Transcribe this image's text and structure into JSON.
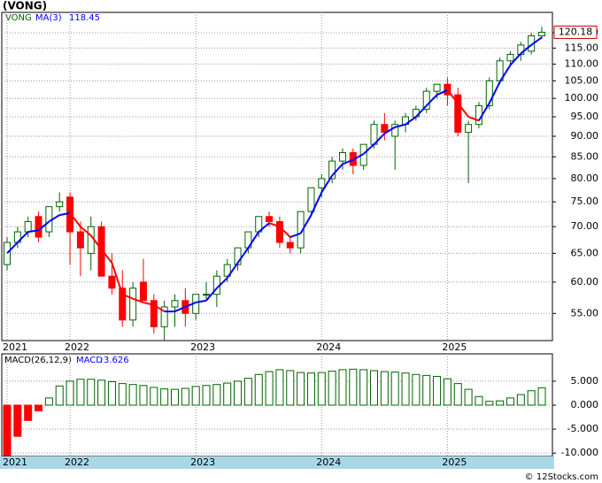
{
  "chart_data": [
    {
      "type": "candlestick",
      "title": "(VONG)",
      "log_scale": true,
      "grid": true,
      "categories": [
        "2021",
        null,
        null,
        null,
        null,
        null,
        "2022",
        null,
        null,
        null,
        null,
        null,
        null,
        null,
        null,
        null,
        null,
        null,
        "2023",
        null,
        null,
        null,
        null,
        null,
        null,
        null,
        null,
        null,
        null,
        null,
        "2024",
        null,
        null,
        null,
        null,
        null,
        null,
        null,
        null,
        null,
        null,
        null,
        "2025",
        null,
        null,
        null,
        null,
        null,
        null,
        null,
        null,
        null
      ],
      "series": [
        {
          "name": "VONG",
          "up_color": "#006400",
          "down_color": "#ff0000",
          "open": [
            63,
            67,
            69,
            72,
            69,
            74,
            76,
            69,
            65,
            70,
            61,
            59,
            54,
            60,
            57,
            53,
            56,
            57,
            55,
            58,
            58,
            61,
            63,
            66,
            69,
            72,
            71,
            67,
            66,
            73,
            78,
            80,
            84,
            86,
            83,
            88,
            93,
            90,
            93,
            95,
            97,
            102,
            104,
            101,
            91,
            93,
            98,
            105,
            111,
            113,
            114,
            119
          ],
          "high": [
            68,
            70,
            72,
            73,
            74,
            77,
            77,
            71,
            72,
            71,
            65,
            62,
            60,
            64,
            58,
            57,
            58,
            59,
            58,
            60,
            62,
            64,
            66,
            69,
            72,
            73,
            72,
            68,
            73,
            78,
            81,
            85,
            87,
            87,
            88,
            94,
            96,
            94,
            96,
            98,
            103,
            104,
            106,
            103,
            94,
            99,
            106,
            112,
            114,
            117,
            120,
            122
          ],
          "low": [
            62,
            66,
            68,
            67,
            68,
            73,
            63,
            61,
            62,
            61,
            58,
            53,
            53,
            57,
            52,
            51,
            53,
            53,
            54,
            57,
            56,
            60,
            62,
            65,
            68,
            70,
            66,
            65,
            65,
            72,
            76,
            79,
            82,
            81,
            82,
            87,
            89,
            82,
            91,
            94,
            96,
            100,
            98,
            90,
            79,
            92,
            97,
            104,
            110,
            111,
            113,
            118
          ],
          "close": [
            67,
            69,
            71,
            68,
            74,
            75,
            69,
            66,
            70,
            61,
            59,
            54,
            59,
            57,
            53,
            56,
            57,
            55,
            58,
            58,
            61,
            63,
            66,
            69,
            72,
            71,
            67,
            66,
            73,
            78,
            80,
            84,
            86,
            83,
            88,
            93,
            91,
            93,
            95,
            97,
            102,
            104,
            101,
            91,
            93,
            98,
            105,
            111,
            113,
            116,
            119,
            120.18
          ]
        },
        {
          "name": "MA(3)",
          "color": "#0000ff",
          "down_color": "#ff0000",
          "values": [
            65,
            67,
            69,
            69.3,
            71,
            72.3,
            72.7,
            70,
            68.3,
            65.7,
            63.3,
            58,
            57.3,
            56.7,
            56.3,
            55.3,
            55.3,
            56,
            56.7,
            57,
            59,
            60.7,
            63.3,
            66,
            69,
            70.7,
            70,
            68,
            68.7,
            72.3,
            77,
            80.7,
            83.3,
            84.3,
            85.7,
            88,
            90.7,
            92.3,
            93,
            95,
            98,
            101,
            102.3,
            98.7,
            95,
            94,
            98.7,
            104.7,
            109.7,
            113.3,
            116,
            118.45
          ]
        }
      ],
      "ylim": [
        51,
        127
      ],
      "yticks": [
        {
          "value": 55,
          "label": "55.00"
        },
        {
          "value": 60,
          "label": "60.00"
        },
        {
          "value": 65,
          "label": "65.00"
        },
        {
          "value": 70,
          "label": "70.00"
        },
        {
          "value": 75,
          "label": "75.00"
        },
        {
          "value": 80,
          "label": "80.00"
        },
        {
          "value": 85,
          "label": "85.00"
        },
        {
          "value": 90,
          "label": "90.00"
        },
        {
          "value": 95,
          "label": "95.00"
        },
        {
          "value": 100,
          "label": "100.00"
        },
        {
          "value": 105,
          "label": "105.00"
        },
        {
          "value": 110,
          "label": "110.00"
        },
        {
          "value": 115,
          "label": "115.00"
        },
        {
          "value": 120,
          "label": "120.00"
        }
      ]
    },
    {
      "type": "bar",
      "title": "MACD(26,12,9)",
      "grid": true,
      "categories": [
        "2021",
        null,
        null,
        null,
        null,
        null,
        "2022",
        null,
        null,
        null,
        null,
        null,
        null,
        null,
        null,
        null,
        null,
        null,
        "2023",
        null,
        null,
        null,
        null,
        null,
        null,
        null,
        null,
        null,
        null,
        null,
        "2024",
        null,
        null,
        null,
        null,
        null,
        null,
        null,
        null,
        null,
        null,
        null,
        "2025",
        null,
        null,
        null,
        null,
        null,
        null,
        null,
        null,
        null
      ],
      "series": [
        {
          "name": "MACD",
          "color": "#006400",
          "negative_color": "#ff0000",
          "values": [
            -10.5,
            -6.5,
            -3.2,
            -1.2,
            1.5,
            4,
            5,
            5.4,
            5.4,
            5.2,
            4.9,
            4.5,
            4.3,
            4.1,
            3.7,
            3.4,
            3.3,
            3.5,
            3.9,
            4.1,
            4.3,
            4.6,
            5,
            5.6,
            6.4,
            7,
            7.4,
            7.2,
            6.8,
            6.7,
            6.8,
            7.1,
            7.4,
            7.5,
            7.4,
            7.2,
            7,
            6.9,
            6.7,
            6.4,
            6.2,
            6,
            5.5,
            4.5,
            3.3,
            1.8,
            0.8,
            0.9,
            1.5,
            2.2,
            3,
            3.626
          ]
        }
      ],
      "ylim": [
        -10.7,
        10.7
      ],
      "yticks": [
        {
          "value": -10,
          "label": "-10.000"
        },
        {
          "value": -5,
          "label": "-5.000"
        },
        {
          "value": 0,
          "label": "0.000"
        },
        {
          "value": 5,
          "label": "5.000"
        }
      ]
    }
  ],
  "footer": "© 12Stocks.com"
}
